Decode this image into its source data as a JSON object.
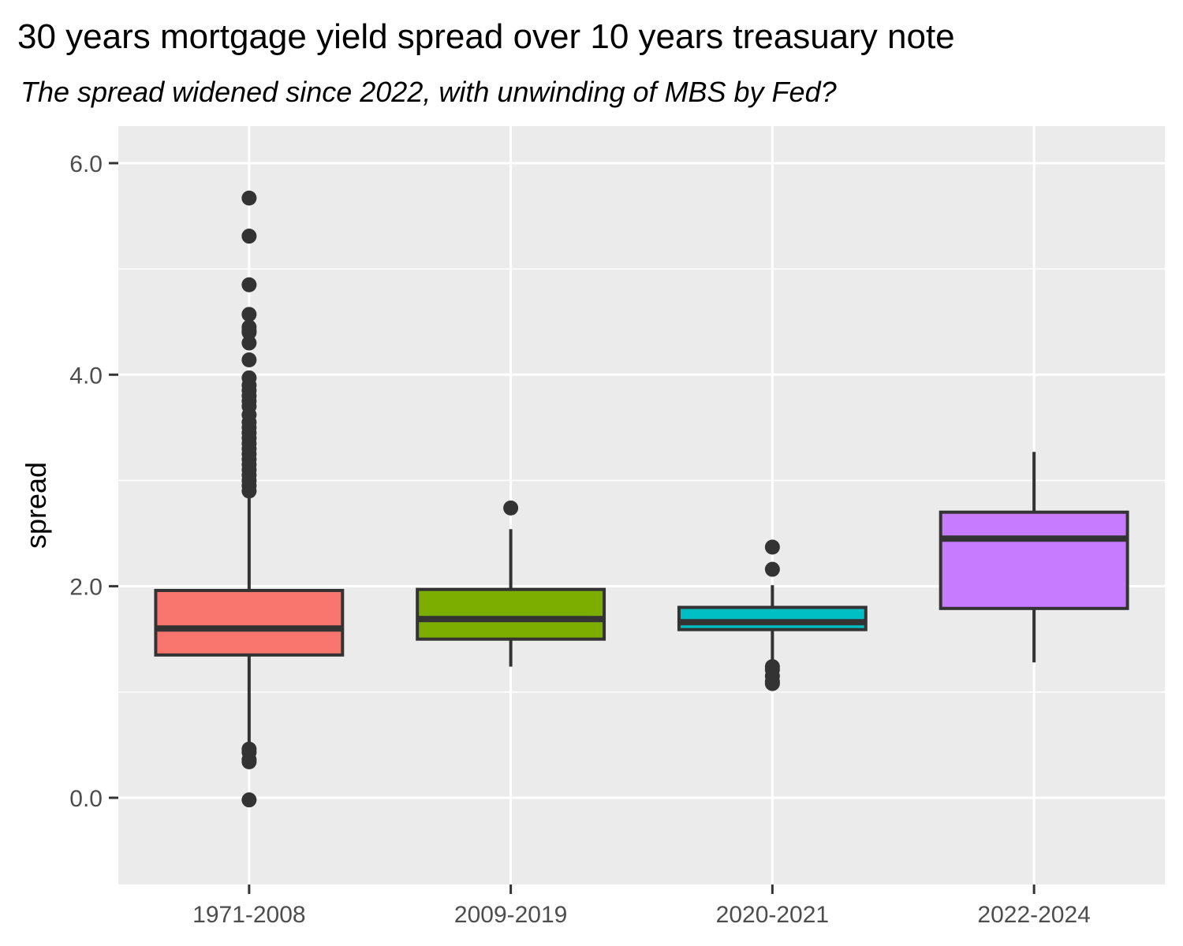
{
  "chart_data": {
    "type": "boxplot",
    "title": "30 years mortgage yield spread over 10 years treasuary note",
    "subtitle": "The spread widened since 2022, with unwinding of MBS by Fed?",
    "xlabel": "",
    "ylabel": "spread",
    "ylim": [
      -0.82,
      6.35
    ],
    "yticks": [
      0.0,
      2.0,
      4.0,
      6.0
    ],
    "ytick_labels": [
      "0.0",
      "2.0",
      "4.0",
      "6.0"
    ],
    "grid": true,
    "legend": "none",
    "categories": [
      "1971-2008",
      "2009-2019",
      "2020-2021",
      "2022-2024"
    ],
    "boxes": [
      {
        "category": "1971-2008",
        "color": "#F8766D",
        "lower_whisker": 0.47,
        "q1": 1.35,
        "median": 1.6,
        "q3": 1.96,
        "upper_whisker": 2.87,
        "outliers": [
          5.67,
          5.31,
          4.85,
          4.57,
          4.45,
          4.42,
          4.4,
          4.3,
          4.14,
          3.97,
          3.9,
          3.85,
          3.8,
          3.75,
          3.7,
          3.62,
          3.55,
          3.5,
          3.45,
          3.4,
          3.35,
          3.3,
          3.25,
          3.2,
          3.15,
          3.1,
          3.05,
          3.0,
          2.95,
          2.9,
          0.46,
          0.43,
          0.36,
          0.34,
          -0.02
        ]
      },
      {
        "category": "2009-2019",
        "color": "#7CAE00",
        "lower_whisker": 1.24,
        "q1": 1.5,
        "median": 1.69,
        "q3": 1.97,
        "upper_whisker": 2.54,
        "outliers": [
          2.74
        ]
      },
      {
        "category": "2020-2021",
        "color": "#00BFC4",
        "lower_whisker": 1.27,
        "q1": 1.59,
        "median": 1.66,
        "q3": 1.8,
        "upper_whisker": 2.01,
        "outliers": [
          2.37,
          2.16,
          1.24,
          1.21,
          1.15,
          1.1,
          1.08
        ]
      },
      {
        "category": "2022-2024",
        "color": "#C77CFF",
        "lower_whisker": 1.28,
        "q1": 1.79,
        "median": 2.45,
        "q3": 2.7,
        "upper_whisker": 3.27,
        "outliers": []
      }
    ]
  }
}
